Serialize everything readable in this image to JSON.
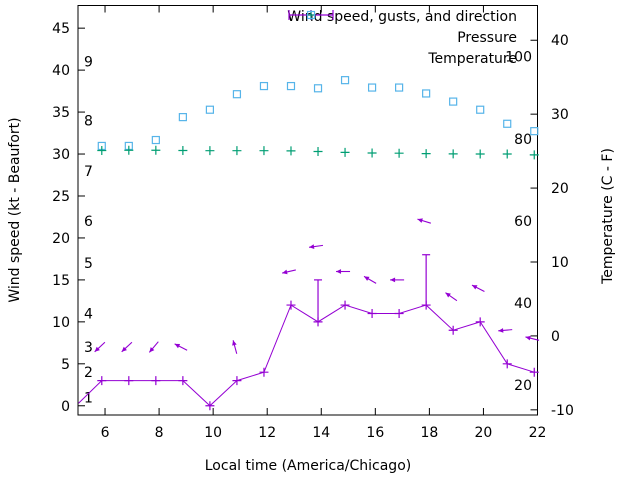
{
  "figure": {
    "xlabel": "Local time (America/Chicago)",
    "ylabel": "Wind speed (kt - Beaufort)",
    "y2label": "Temperature (C - F)"
  },
  "chart_data": {
    "type": "line",
    "title": "",
    "grid": false,
    "legend_position": "top-right-inside",
    "x_axis": {
      "label": "Local time (America/Chicago)",
      "range": [
        5,
        22
      ],
      "ticks": [
        6,
        8,
        10,
        12,
        14,
        16,
        18,
        20,
        22
      ]
    },
    "y_axis": {
      "label": "Wind speed (kt - Beaufort)",
      "range": [
        -1.1,
        47.7
      ],
      "ticks": [
        0,
        5,
        10,
        15,
        20,
        25,
        30,
        35,
        40,
        45
      ],
      "beaufort_labels": [
        {
          "label": "1",
          "kt": 1
        },
        {
          "label": "2",
          "kt": 4
        },
        {
          "label": "3",
          "kt": 7
        },
        {
          "label": "4",
          "kt": 11
        },
        {
          "label": "5",
          "kt": 17
        },
        {
          "label": "6",
          "kt": 22
        },
        {
          "label": "7",
          "kt": 28
        },
        {
          "label": "8",
          "kt": 34
        },
        {
          "label": "9",
          "kt": 41
        }
      ]
    },
    "y2_axis": {
      "label": "Temperature (C - F)",
      "range_c": [
        -10.7,
        44.7
      ],
      "ticks_c": [
        -10,
        0,
        10,
        20,
        30,
        40
      ],
      "fahrenheit_labels": [
        {
          "label": "20",
          "f": 20
        },
        {
          "label": "40",
          "f": 40
        },
        {
          "label": "60",
          "f": 60
        },
        {
          "label": "80",
          "f": 80
        },
        {
          "label": "100",
          "f": 100
        }
      ]
    },
    "times": [
      5.88,
      6.88,
      7.88,
      8.88,
      9.88,
      10.88,
      11.88,
      12.88,
      13.88,
      14.88,
      15.88,
      16.88,
      17.88,
      18.88,
      19.88,
      20.88,
      21.88
    ],
    "series": [
      {
        "name": "Wind speed, gusts, and direction",
        "type": "line-markers-vectors",
        "color": "#9400d3",
        "marker": "plus",
        "values_kt": [
          3,
          3,
          3,
          3,
          0,
          3,
          4,
          12,
          10,
          12,
          11,
          11,
          12,
          9,
          10,
          5,
          4
        ],
        "gusts_kt": [
          null,
          null,
          null,
          null,
          null,
          null,
          null,
          null,
          15,
          null,
          null,
          null,
          18,
          null,
          null,
          null,
          null
        ],
        "lead_in": {
          "t": 5.02,
          "v": 0.3
        },
        "arrow_offset_kt": 4,
        "direction_arrows": [
          {
            "index": 0,
            "angle_deg": 223
          },
          {
            "index": 1,
            "angle_deg": 223
          },
          {
            "index": 2,
            "angle_deg": 230
          },
          {
            "index": 3,
            "angle_deg": 153
          },
          {
            "index": 5,
            "angle_deg": 105
          },
          {
            "index": 7,
            "angle_deg": 193
          },
          {
            "index": 8,
            "angle_deg": 188
          },
          {
            "index": 9,
            "angle_deg": 180
          },
          {
            "index": 10,
            "angle_deg": 150
          },
          {
            "index": 11,
            "angle_deg": 180
          },
          {
            "index": 12,
            "angle_deg": 163
          },
          {
            "index": 13,
            "angle_deg": 145
          },
          {
            "index": 14,
            "angle_deg": 153
          },
          {
            "index": 15,
            "angle_deg": 185
          },
          {
            "index": 16,
            "angle_deg": 166
          }
        ]
      },
      {
        "name": "Pressure",
        "type": "points",
        "color": "#009e73",
        "marker": "plus",
        "values_inhg": [
          30.42,
          30.45,
          30.45,
          30.42,
          30.4,
          30.4,
          30.4,
          30.38,
          30.3,
          30.2,
          30.12,
          30.1,
          30.05,
          30.02,
          30.0,
          30.0,
          29.9
        ]
      },
      {
        "name": "Temperature",
        "type": "points",
        "color": "#56b4e9",
        "marker": "open-square",
        "values_c": [
          25.7,
          25.7,
          26.5,
          29.6,
          30.6,
          32.7,
          33.8,
          33.8,
          33.5,
          34.6,
          33.6,
          33.6,
          32.8,
          31.7,
          30.6,
          28.7,
          27.7
        ]
      }
    ],
    "legend": {
      "entries": [
        {
          "label": "Wind speed, gusts, and direction"
        },
        {
          "label": "Pressure"
        },
        {
          "label": "Temperature"
        }
      ]
    },
    "colors": {
      "wind": "#9400d3",
      "pressure": "#009e73",
      "temperature": "#56b4e9",
      "axis": "#000000",
      "background": "#ffffff"
    }
  }
}
